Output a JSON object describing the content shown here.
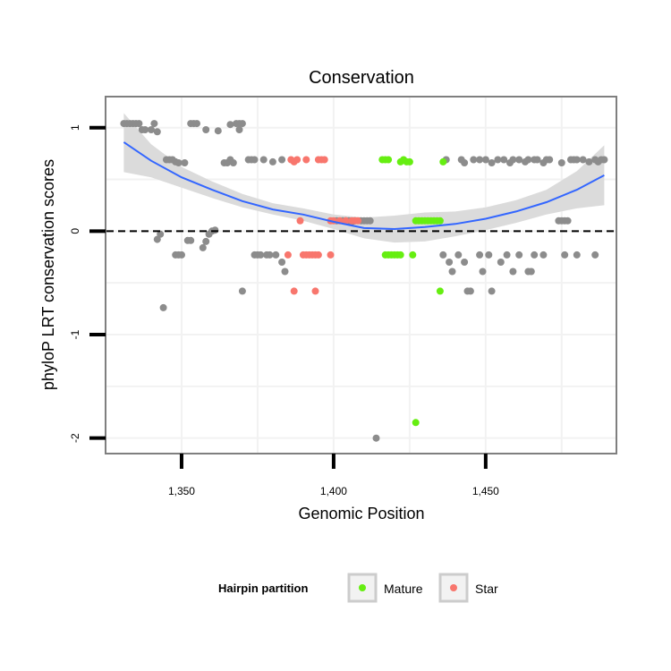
{
  "chart_data": {
    "type": "scatter",
    "title": "Conservation",
    "xlabel": "Genomic Position",
    "ylabel": "phyloP LRT conservation scores",
    "xlim": [
      1325,
      1493
    ],
    "ylim": [
      -2.15,
      1.3
    ],
    "x_ticks": [
      1350,
      1400,
      1450
    ],
    "x_tick_labels": [
      "1,350",
      "1,400",
      "1,450"
    ],
    "y_ticks": [
      -2,
      -1,
      0,
      1
    ],
    "y_tick_labels": [
      "-2",
      "-1",
      "0",
      "1"
    ],
    "reference_line": {
      "y": 0,
      "style": "dashed"
    },
    "legend": {
      "title": "Hairpin partition",
      "position": "bottom",
      "entries": [
        {
          "label": "Mature",
          "color": "#66ee11"
        },
        {
          "label": "Star",
          "color": "#f8766d"
        }
      ]
    },
    "colors": {
      "other": "#8c8c8c",
      "Mature": "#66ee11",
      "Star": "#f8766d",
      "smooth": "#3366ff",
      "ribbon": "#d9d9d9"
    },
    "smooth": {
      "x": [
        1331,
        1340,
        1350,
        1360,
        1370,
        1380,
        1390,
        1400,
        1410,
        1420,
        1430,
        1440,
        1450,
        1460,
        1470,
        1480,
        1489
      ],
      "y": [
        0.86,
        0.68,
        0.52,
        0.4,
        0.29,
        0.21,
        0.16,
        0.09,
        0.03,
        0.02,
        0.04,
        0.07,
        0.12,
        0.19,
        0.28,
        0.4,
        0.54
      ],
      "lower": [
        0.57,
        0.52,
        0.42,
        0.32,
        0.23,
        0.16,
        0.1,
        0.02,
        -0.07,
        -0.11,
        -0.1,
        -0.05,
        0.01,
        0.08,
        0.16,
        0.22,
        0.25
      ],
      "upper": [
        1.14,
        0.84,
        0.62,
        0.48,
        0.36,
        0.27,
        0.22,
        0.16,
        0.13,
        0.15,
        0.18,
        0.19,
        0.23,
        0.3,
        0.4,
        0.58,
        0.83
      ]
    },
    "series": [
      {
        "name": "Other",
        "points": [
          [
            1331,
            1.04
          ],
          [
            1332,
            1.04
          ],
          [
            1333,
            1.04
          ],
          [
            1334,
            1.04
          ],
          [
            1335,
            1.04
          ],
          [
            1336,
            1.04
          ],
          [
            1337,
            0.98
          ],
          [
            1338,
            0.98
          ],
          [
            1340,
            0.98
          ],
          [
            1341,
            1.04
          ],
          [
            1342,
            0.96
          ],
          [
            1342,
            -0.08
          ],
          [
            1343,
            -0.03
          ],
          [
            1344,
            -0.74
          ],
          [
            1345,
            0.69
          ],
          [
            1346,
            0.69
          ],
          [
            1347,
            0.69
          ],
          [
            1348,
            0.67
          ],
          [
            1349,
            0.66
          ],
          [
            1351,
            0.66
          ],
          [
            1348,
            -0.23
          ],
          [
            1349,
            -0.23
          ],
          [
            1350,
            -0.23
          ],
          [
            1352,
            -0.09
          ],
          [
            1353,
            -0.09
          ],
          [
            1353,
            1.04
          ],
          [
            1354,
            1.04
          ],
          [
            1355,
            1.04
          ],
          [
            1358,
            0.98
          ],
          [
            1362,
            0.97
          ],
          [
            1366,
            1.03
          ],
          [
            1357,
            -0.16
          ],
          [
            1358,
            -0.1
          ],
          [
            1359,
            -0.03
          ],
          [
            1360,
            0.0
          ],
          [
            1361,
            0.01
          ],
          [
            1364,
            0.66
          ],
          [
            1365,
            0.66
          ],
          [
            1366,
            0.69
          ],
          [
            1367,
            0.66
          ],
          [
            1368,
            1.04
          ],
          [
            1369,
            1.04
          ],
          [
            1370,
            1.04
          ],
          [
            1369,
            0.98
          ],
          [
            1370,
            -0.58
          ],
          [
            1372,
            0.69
          ],
          [
            1373,
            0.69
          ],
          [
            1374,
            0.69
          ],
          [
            1377,
            0.69
          ],
          [
            1380,
            0.67
          ],
          [
            1383,
            0.69
          ],
          [
            1374,
            -0.23
          ],
          [
            1375,
            -0.23
          ],
          [
            1376,
            -0.23
          ],
          [
            1378,
            -0.23
          ],
          [
            1379,
            -0.23
          ],
          [
            1381,
            -0.23
          ],
          [
            1383,
            -0.3
          ],
          [
            1384,
            -0.39
          ],
          [
            1401,
            0.1
          ],
          [
            1403,
            0.1
          ],
          [
            1404,
            0.1
          ],
          [
            1405,
            0.1
          ],
          [
            1406,
            0.09
          ],
          [
            1407,
            0.1
          ],
          [
            1409,
            0.1
          ],
          [
            1410,
            0.1
          ],
          [
            1411,
            0.1
          ],
          [
            1412,
            0.1
          ],
          [
            1414,
            -2.0
          ],
          [
            1437,
            0.69
          ],
          [
            1442,
            0.69
          ],
          [
            1443,
            0.66
          ],
          [
            1446,
            0.69
          ],
          [
            1448,
            0.69
          ],
          [
            1450,
            0.69
          ],
          [
            1452,
            0.66
          ],
          [
            1454,
            0.69
          ],
          [
            1456,
            0.69
          ],
          [
            1458,
            0.66
          ],
          [
            1459,
            0.69
          ],
          [
            1461,
            0.69
          ],
          [
            1463,
            0.67
          ],
          [
            1464,
            0.69
          ],
          [
            1466,
            0.69
          ],
          [
            1467,
            0.69
          ],
          [
            1469,
            0.66
          ],
          [
            1470,
            0.69
          ],
          [
            1471,
            0.69
          ],
          [
            1475,
            0.66
          ],
          [
            1478,
            0.69
          ],
          [
            1479,
            0.69
          ],
          [
            1480,
            0.69
          ],
          [
            1482,
            0.69
          ],
          [
            1484,
            0.67
          ],
          [
            1486,
            0.69
          ],
          [
            1487,
            0.67
          ],
          [
            1488,
            0.69
          ],
          [
            1489,
            0.69
          ],
          [
            1474,
            0.1
          ],
          [
            1475,
            0.1
          ],
          [
            1476,
            0.1
          ],
          [
            1477,
            0.1
          ],
          [
            1436,
            -0.23
          ],
          [
            1438,
            -0.3
          ],
          [
            1439,
            -0.39
          ],
          [
            1441,
            -0.23
          ],
          [
            1443,
            -0.3
          ],
          [
            1444,
            -0.58
          ],
          [
            1445,
            -0.58
          ],
          [
            1448,
            -0.23
          ],
          [
            1449,
            -0.39
          ],
          [
            1451,
            -0.23
          ],
          [
            1452,
            -0.58
          ],
          [
            1455,
            -0.3
          ],
          [
            1457,
            -0.23
          ],
          [
            1459,
            -0.39
          ],
          [
            1461,
            -0.23
          ],
          [
            1464,
            -0.39
          ],
          [
            1465,
            -0.39
          ],
          [
            1466,
            -0.23
          ],
          [
            1469,
            -0.23
          ],
          [
            1476,
            -0.23
          ],
          [
            1480,
            -0.23
          ],
          [
            1486,
            -0.23
          ]
        ]
      },
      {
        "name": "Mature",
        "points": [
          [
            1416,
            0.69
          ],
          [
            1417,
            0.69
          ],
          [
            1418,
            0.69
          ],
          [
            1422,
            0.67
          ],
          [
            1423,
            0.69
          ],
          [
            1424,
            0.67
          ],
          [
            1425,
            0.67
          ],
          [
            1436,
            0.67
          ],
          [
            1427,
            0.1
          ],
          [
            1428,
            0.1
          ],
          [
            1429,
            0.1
          ],
          [
            1430,
            0.1
          ],
          [
            1431,
            0.1
          ],
          [
            1432,
            0.1
          ],
          [
            1433,
            0.1
          ],
          [
            1434,
            0.1
          ],
          [
            1435,
            0.1
          ],
          [
            1417,
            -0.23
          ],
          [
            1418,
            -0.23
          ],
          [
            1419,
            -0.23
          ],
          [
            1420,
            -0.23
          ],
          [
            1421,
            -0.23
          ],
          [
            1422,
            -0.23
          ],
          [
            1426,
            -0.23
          ],
          [
            1435,
            -0.58
          ],
          [
            1427,
            -1.85
          ]
        ]
      },
      {
        "name": "Star",
        "points": [
          [
            1386,
            0.69
          ],
          [
            1387,
            0.67
          ],
          [
            1388,
            0.69
          ],
          [
            1391,
            0.69
          ],
          [
            1395,
            0.69
          ],
          [
            1396,
            0.69
          ],
          [
            1397,
            0.69
          ],
          [
            1389,
            0.1
          ],
          [
            1399,
            0.1
          ],
          [
            1400,
            0.1
          ],
          [
            1402,
            0.1
          ],
          [
            1404,
            0.1
          ],
          [
            1406,
            0.1
          ],
          [
            1407,
            0.1
          ],
          [
            1408,
            0.1
          ],
          [
            1385,
            -0.23
          ],
          [
            1390,
            -0.23
          ],
          [
            1391,
            -0.23
          ],
          [
            1392,
            -0.23
          ],
          [
            1393,
            -0.23
          ],
          [
            1394,
            -0.23
          ],
          [
            1395,
            -0.23
          ],
          [
            1399,
            -0.23
          ],
          [
            1387,
            -0.58
          ],
          [
            1394,
            -0.58
          ]
        ]
      }
    ]
  }
}
